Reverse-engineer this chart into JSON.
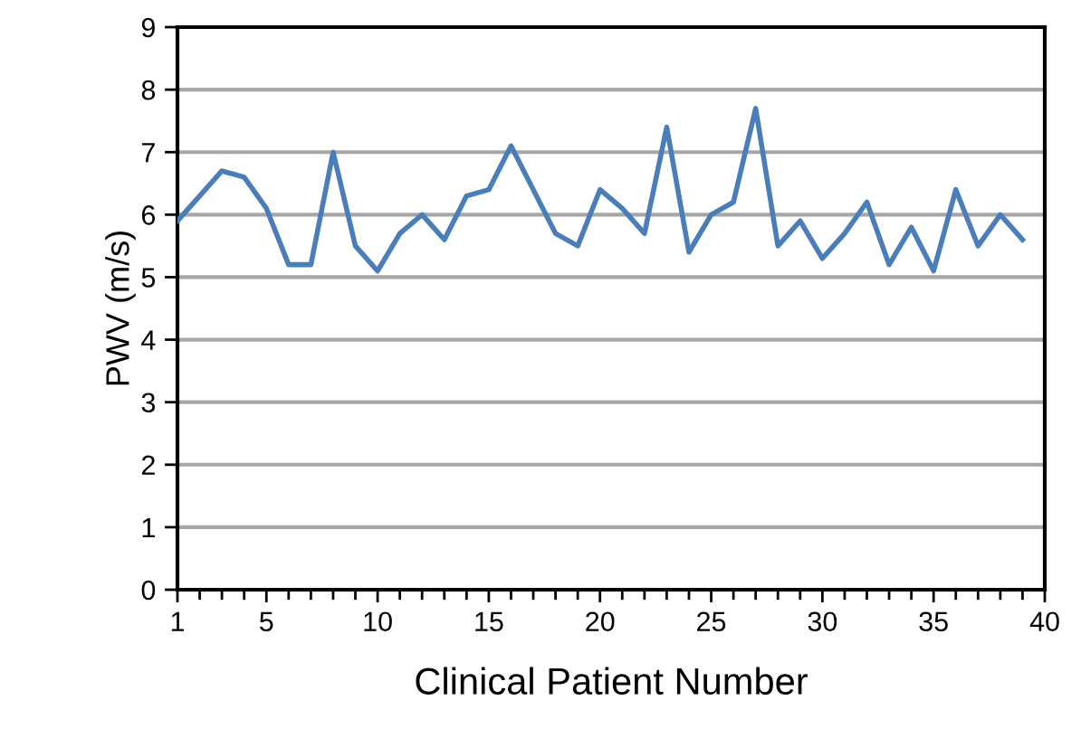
{
  "chart_data": {
    "type": "line",
    "xlabel": "Clinical Patient Number",
    "ylabel": "PWV (m/s)",
    "x": [
      1,
      2,
      3,
      4,
      5,
      6,
      7,
      8,
      9,
      10,
      11,
      12,
      13,
      14,
      15,
      16,
      17,
      18,
      19,
      20,
      21,
      22,
      23,
      24,
      25,
      26,
      27,
      28,
      29,
      30,
      31,
      32,
      33,
      34,
      35,
      36,
      37,
      38,
      39
    ],
    "series": [
      {
        "color": "#4a7ebb",
        "values": [
          5.9,
          6.3,
          6.7,
          6.6,
          6.1,
          5.2,
          5.2,
          7.0,
          5.5,
          5.1,
          5.7,
          6.0,
          5.6,
          6.3,
          6.4,
          7.1,
          6.4,
          5.7,
          5.5,
          6.4,
          6.1,
          5.7,
          7.4,
          5.4,
          6.0,
          6.2,
          7.7,
          5.5,
          5.9,
          5.3,
          5.7,
          6.2,
          5.2,
          5.8,
          5.1,
          6.4,
          5.5,
          6.0,
          5.6
        ]
      }
    ],
    "xlim": [
      1,
      40
    ],
    "xticks": [
      1,
      5,
      10,
      15,
      20,
      25,
      30,
      35,
      40
    ],
    "ylim": [
      0,
      9
    ],
    "yticks": [
      0,
      1,
      2,
      3,
      4,
      5,
      6,
      7,
      8,
      9
    ],
    "grid": "y",
    "marker": "none",
    "line_style": "solid",
    "legend": false
  }
}
